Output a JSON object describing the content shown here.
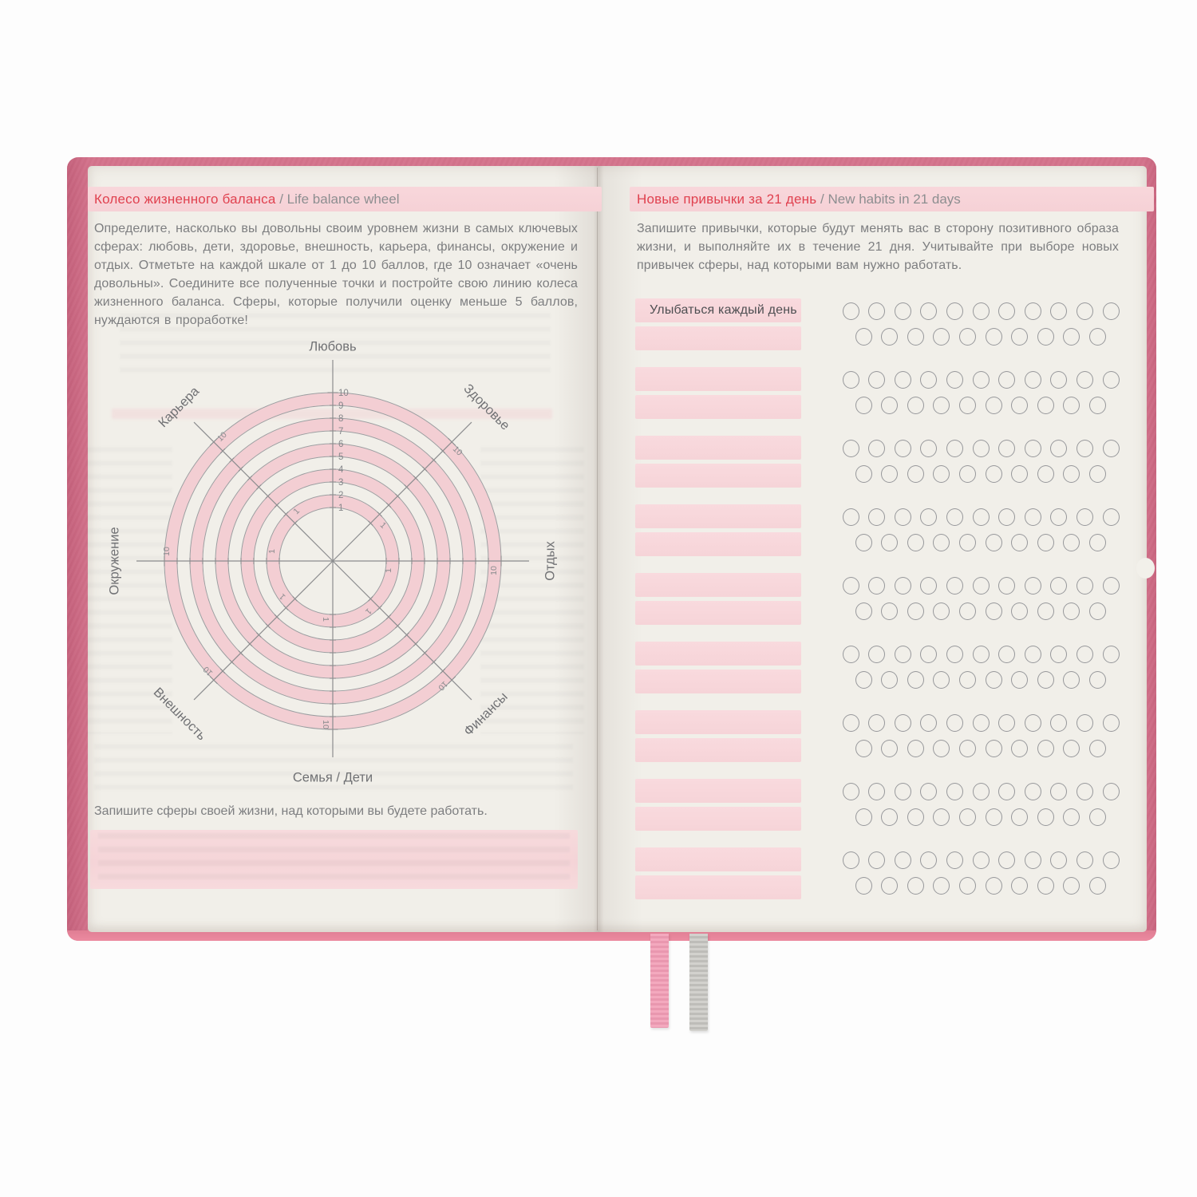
{
  "left_page": {
    "header": {
      "title_ru": "Колесо жизненного баланса",
      "divider": " / ",
      "title_en": "Life balance wheel"
    },
    "intro": "Определите, насколько вы довольны своим уровнем жизни в самых ключевых сферах: любовь, дети, здоровье, внешность, карьера, финансы, окружение и отдых. Отметьте на каждой шкале от 1 до 10 баллов, где 10 означает «очень довольны». Соедините все полученные точки и постройте свою линию колеса жизненного баланса. Сферы, которые получили оценку меньше 5 баллов, нуждаются в проработке!",
    "footer_prompt": "Запишите сферы своей жизни, над которыми вы будете работать."
  },
  "right_page": {
    "header": {
      "title_ru": "Новые привычки за 21 день",
      "divider": " / ",
      "title_en": "New habits in 21 days"
    },
    "intro": "Запишите привычки, которые будут менять вас в сторону позитивного образа жизни, и выполняйте их в течение 21 дня. Учитывайте при выборе новых привычек сферы, над которыми вам нужно работать.",
    "tracker": {
      "days_per_habit": 21,
      "row_layout": [
        11,
        10
      ],
      "habits": [
        {
          "label": "Улыбаться каждый день"
        },
        {
          "label": ""
        },
        {
          "label": ""
        },
        {
          "label": ""
        },
        {
          "label": ""
        },
        {
          "label": ""
        },
        {
          "label": ""
        },
        {
          "label": ""
        },
        {
          "label": ""
        }
      ]
    }
  },
  "chart_data": {
    "type": "radar",
    "title": "Колесо жизненного баланса / Life balance wheel",
    "axes": [
      "Любовь",
      "Здоровье",
      "Отдых",
      "Финансы",
      "Семья / Дети",
      "Внешность",
      "Окружение",
      "Карьера"
    ],
    "scale": {
      "min": 1,
      "max": 10,
      "ticks": [
        1,
        2,
        3,
        4,
        5,
        6,
        7,
        8,
        9,
        10
      ],
      "tick_labels_on_axis": "Любовь",
      "outer_label": "10",
      "inner_label": "1"
    },
    "series": [],
    "layout": {
      "rings": "alternating pink bands between odd-even radii",
      "grid": "10 concentric circles, 8 radial axes"
    }
  },
  "colors": {
    "accent_red": "#e0414f",
    "band_pink": "#f7d4d9",
    "ring_pink": "#f3ced3",
    "bar_pink": "#f8d8db",
    "cover_pink": "#d4738c",
    "page_bg": "#f1efe9",
    "text_gray": "#7d7e80"
  }
}
